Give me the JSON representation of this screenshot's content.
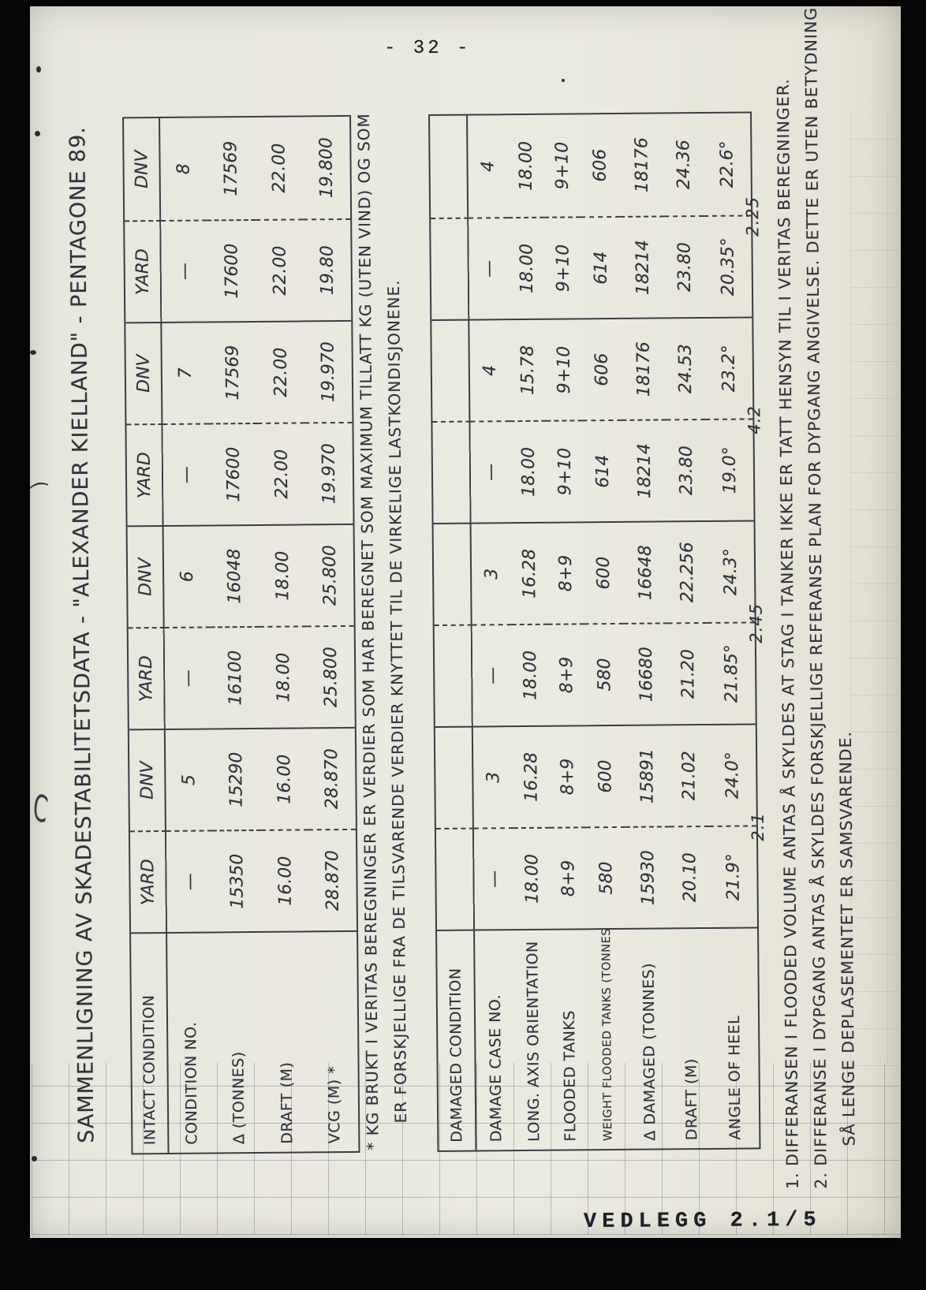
{
  "page": {
    "number": "- 32 -",
    "footer_tag": "VEDLEGG 2.1/5"
  },
  "title": "SAMMENLIGNING AV SKADESTABILITETSDATA - \"ALEXANDER KIELLAND\" - PENTAGONE 89.",
  "colors": {
    "paper": "#eae9e0",
    "ink": "#32323a",
    "surround": "#07070a"
  },
  "intact_table": {
    "grid": [
      [
        "INTACT CONDITION",
        "YARD",
        "DNV",
        "YARD",
        "DNV",
        "YARD",
        "DNV",
        "YARD",
        "DNV"
      ],
      [
        "CONDITION NO.",
        "—",
        "5",
        "—",
        "6",
        "—",
        "7",
        "—",
        "8"
      ],
      [
        "Δ (TONNES)",
        "15350",
        "15290",
        "16100",
        "16048",
        "17600",
        "17569",
        "17600",
        "17569"
      ],
      [
        "DRAFT (M)",
        "16.00",
        "16.00",
        "18.00",
        "18.00",
        "22.00",
        "22.00",
        "22.00",
        "22.00"
      ],
      [
        "VCG (M) *",
        "28.870",
        "28.870",
        "25.800",
        "25.800",
        "19.970",
        "19.970",
        "19.80",
        "19.800"
      ]
    ]
  },
  "intact_note": {
    "line1": "* KG BRUKT I VERITAS BEREGNINGER ER VERDIER SOM HAR BEREGNET SOM MAXIMUM TILLATT KG (UTEN VIND) OG SOM",
    "line2": "ER FORSKJELLIGE FRA DE TILSVARENDE VERDIER KNYTTET TIL DE VIRKELIGE LASTKONDISJONENE."
  },
  "damaged_table": {
    "grid": [
      [
        "DAMAGED CONDITION",
        "",
        "",
        "",
        "",
        "",
        "",
        "",
        ""
      ],
      [
        "DAMAGE CASE NO.",
        "—",
        "3",
        "—",
        "3",
        "—",
        "4",
        "—",
        "4"
      ],
      [
        "LONG. AXIS ORIENTATION",
        "18.00",
        "16.28",
        "18.00",
        "16.28",
        "18.00",
        "15.78",
        "18.00",
        "18.00"
      ],
      [
        "FLOODED TANKS",
        "8+9",
        "8+9",
        "8+9",
        "8+9",
        "9+10",
        "9+10",
        "9+10",
        "9+10"
      ],
      [
        "WEIGHT FLOODED TANKS (TONNES)",
        "580",
        "600",
        "580",
        "600",
        "614",
        "606",
        "614",
        "606"
      ],
      [
        "Δ DAMAGED (TONNES)",
        "15930",
        "15891",
        "16680",
        "16648",
        "18214",
        "18176",
        "18214",
        "18176"
      ],
      [
        "DRAFT (M)",
        "20.10",
        "21.02",
        "21.20",
        "22.256",
        "23.80",
        "24.53",
        "23.80",
        "24.36"
      ],
      [
        "ANGLE OF HEEL",
        "21.9°",
        "24.0°",
        "21.85°",
        "24.3°",
        "19.0°",
        "23.2°",
        "20.35°",
        "22.6°"
      ]
    ],
    "heel_differences": [
      "2.1",
      "2.45",
      "4.2",
      "2.25"
    ]
  },
  "footnotes": {
    "note1": "1. DIFFERANSEN I FLOODED VOLUME ANTAS Å SKYLDES AT STAG I TANKER IKKE ER TATT HENSYN TIL I VERITAS BEREGNINGER.",
    "note2_line1": "2. DIFFERANSE I DYPGANG ANTAS Å SKYLDES FORSKJELLIGE REFERANSE PLAN FOR DYPGANG ANGIVELSE. DETTE ER UTEN BETYDNING",
    "note2_line2": "SÅ LENGE DEPLASEMENTET ER SAMSVARENDE."
  }
}
